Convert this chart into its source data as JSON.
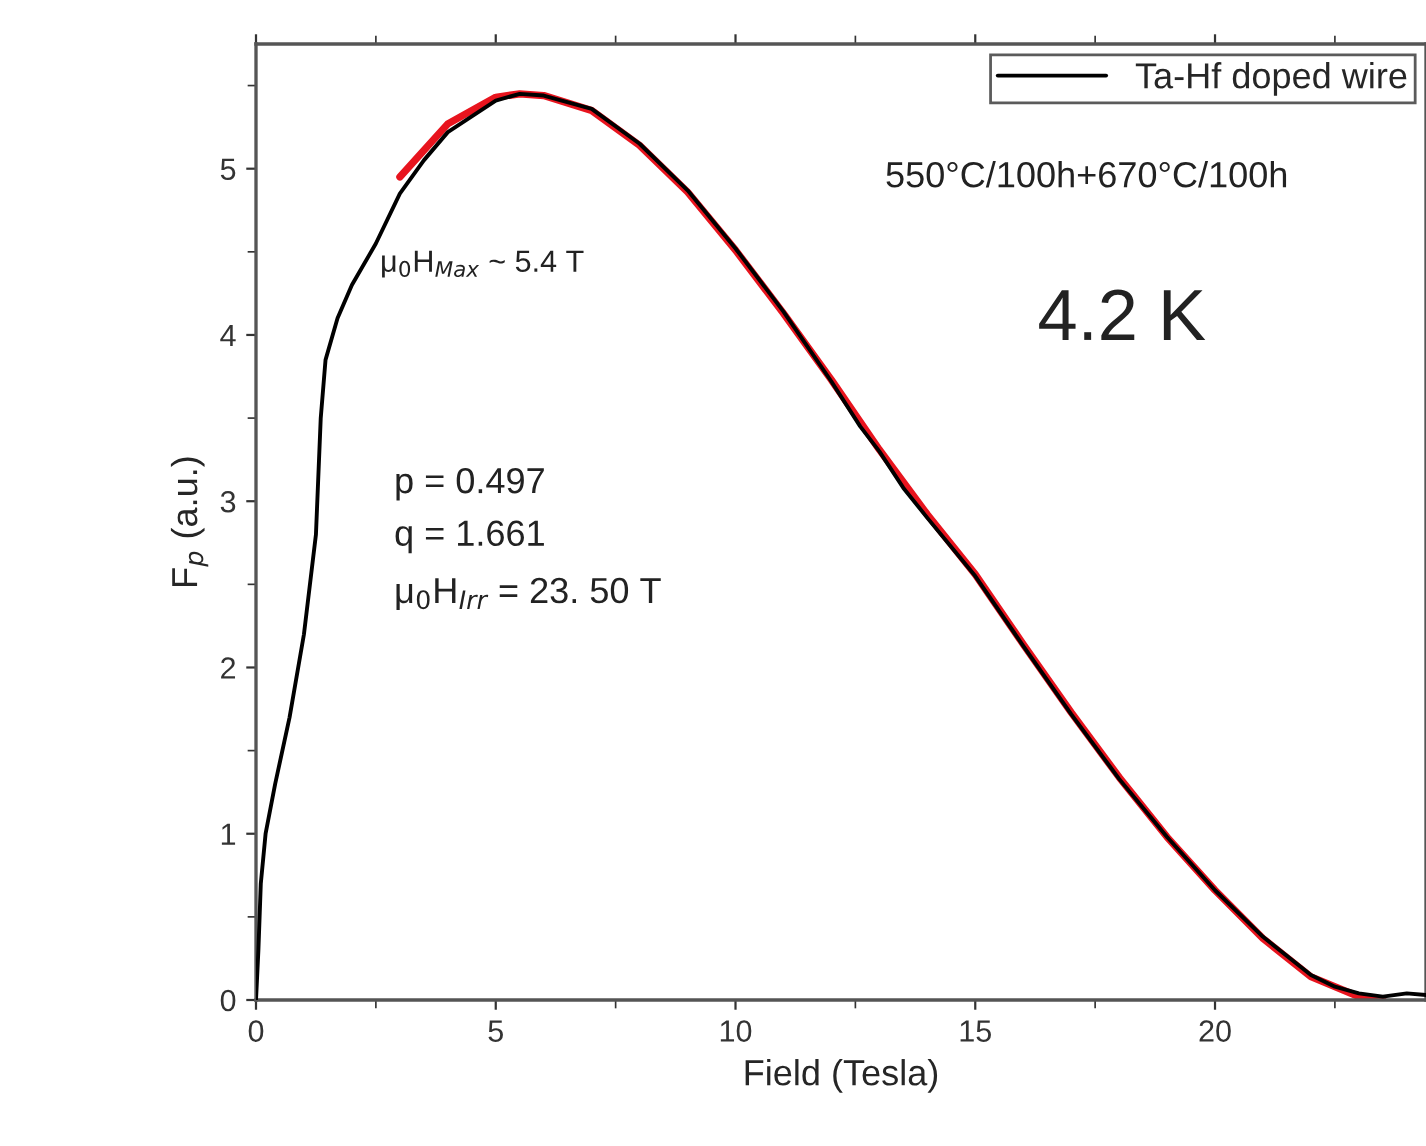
{
  "chart_data": {
    "type": "line",
    "xlabel": "Field (Tesla)",
    "ylabel": "F$_{p}$ (a.u.)",
    "xlim": [
      0,
      24.4
    ],
    "ylim": [
      0,
      5.75
    ],
    "xticks": [
      0,
      5,
      10,
      15,
      20
    ],
    "yticks": [
      0,
      1,
      2,
      3,
      4,
      5
    ],
    "grid": false,
    "legend": "top right",
    "marker": "none",
    "line_style": "solid",
    "series": [
      {
        "name": "Ta-Hf doped wire",
        "color": "#000000",
        "x": [
          0,
          0.05,
          0.1,
          0.2,
          0.4,
          0.7,
          1.0,
          1.25,
          1.35,
          1.45,
          1.7,
          2.0,
          2.5,
          3.0,
          3.5,
          4,
          5,
          5.5,
          6,
          7,
          8,
          9,
          10,
          11,
          12,
          12.6,
          13,
          13.5,
          14,
          15,
          16,
          17,
          18,
          19,
          20,
          21,
          22,
          22.5,
          23,
          23.5,
          24,
          24.4
        ],
        "values": [
          0,
          0.3,
          0.7,
          1.0,
          1.3,
          1.7,
          2.2,
          2.8,
          3.5,
          3.85,
          4.1,
          4.3,
          4.55,
          4.85,
          5.05,
          5.22,
          5.41,
          5.45,
          5.44,
          5.36,
          5.15,
          4.87,
          4.52,
          4.14,
          3.72,
          3.45,
          3.3,
          3.08,
          2.9,
          2.55,
          2.13,
          1.72,
          1.33,
          0.98,
          0.66,
          0.38,
          0.15,
          0.08,
          0.04,
          0.02,
          0.04,
          0.03
        ]
      },
      {
        "color": "#e8141e",
        "x": [
          3,
          4,
          5,
          5.5,
          6,
          7,
          8,
          9,
          10,
          11,
          12,
          13,
          14,
          15,
          16,
          17,
          18,
          19,
          20,
          21,
          22,
          23,
          23.5
        ],
        "values": [
          4.95,
          5.27,
          5.43,
          5.45,
          5.44,
          5.35,
          5.14,
          4.86,
          4.51,
          4.13,
          3.73,
          3.31,
          2.92,
          2.56,
          2.14,
          1.73,
          1.34,
          0.98,
          0.66,
          0.37,
          0.14,
          0.02,
          0
        ]
      }
    ],
    "annotations": [
      "550°C/100h+670°C/100h",
      "4.2 K",
      "μ$_{0}$H$_{Max}$ ~ 5.4 T",
      "p = 0.497",
      "q = 1.661",
      "μ$_{0}$H$_{Irr}$ = 23. 50 T"
    ]
  }
}
